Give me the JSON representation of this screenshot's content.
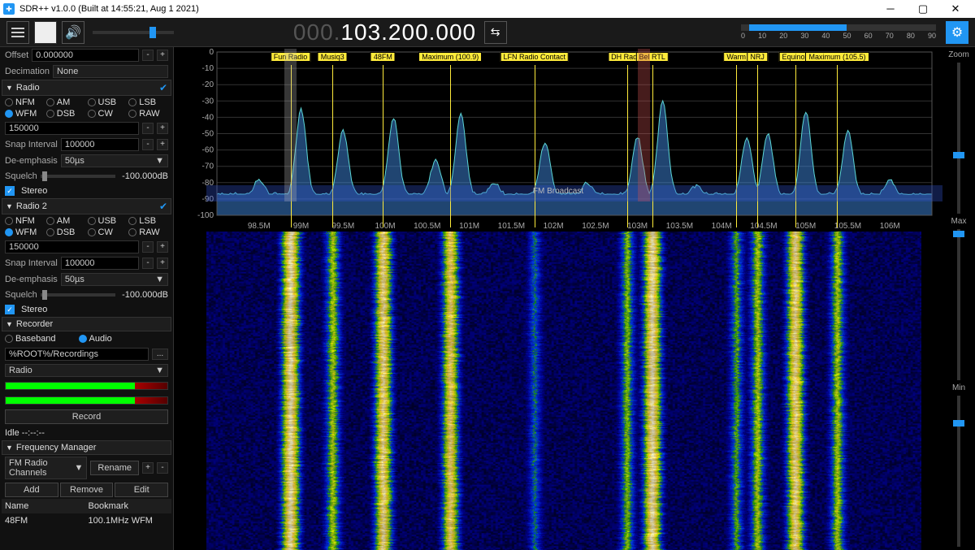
{
  "window": {
    "title": "SDR++ v1.0.0 (Built at 14:55:21, Aug  1 2021)"
  },
  "topbar": {
    "freq_dim": "000.",
    "freq_bold": "103.200.000",
    "snr_ticks": [
      "0",
      "10",
      "20",
      "30",
      "40",
      "50",
      "60",
      "70",
      "80",
      "90"
    ]
  },
  "sidebar": {
    "offset_label": "Offset",
    "offset_val": "0.000000",
    "decim_label": "Decimation",
    "decim_val": "None",
    "radio1": {
      "title": "Radio",
      "modes": [
        "NFM",
        "AM",
        "USB",
        "LSB",
        "WFM",
        "DSB",
        "CW",
        "RAW"
      ],
      "selected": "WFM",
      "bw": "150000",
      "snap_label": "Snap Interval",
      "snap": "100000",
      "deemph_label": "De-emphasis",
      "deemph": "50µs",
      "sq_label": "Squelch",
      "sq_val": "-100.000dB",
      "stereo": "Stereo"
    },
    "radio2": {
      "title": "Radio 2",
      "modes": [
        "NFM",
        "AM",
        "USB",
        "LSB",
        "WFM",
        "DSB",
        "CW",
        "RAW"
      ],
      "selected": "WFM",
      "bw": "150000",
      "snap_label": "Snap Interval",
      "snap": "100000",
      "deemph_label": "De-emphasis",
      "deemph": "50µs",
      "sq_label": "Squelch",
      "sq_val": "-100.000dB",
      "stereo": "Stereo"
    },
    "recorder": {
      "title": "Recorder",
      "baseband": "Baseband",
      "audio": "Audio",
      "path": "%ROOT%/Recordings",
      "stream": "Radio",
      "record_btn": "Record",
      "idle": "Idle --:--:--"
    },
    "freqmgr": {
      "title": "Frequency Manager",
      "list": "FM Radio Channels",
      "rename": "Rename",
      "add": "Add",
      "remove": "Remove",
      "edit": "Edit",
      "col_name": "Name",
      "col_bk": "Bookmark",
      "row_name": "48FM",
      "row_bk": "100.1MHz WFM"
    }
  },
  "right": {
    "zoom": "Zoom",
    "max": "Max",
    "min": "Min"
  },
  "spectrum": {
    "y_ticks": [
      0,
      -10,
      -20,
      -30,
      -40,
      -50,
      -60,
      -70,
      -80,
      -90,
      -100
    ],
    "x_min": 98.0,
    "x_max": 106.5,
    "x_ticks": [
      "98.5M",
      "99M",
      "99.5M",
      "100M",
      "100.5M",
      "101M",
      "101.5M",
      "102M",
      "102.5M",
      "103M",
      "103.5M",
      "104M",
      "104.5M",
      "105M",
      "105.5M",
      "106M"
    ],
    "fm_label": "FM Broadcast",
    "bookmarks": [
      {
        "freq": 99.0,
        "label": "Fun Radio"
      },
      {
        "freq": 99.5,
        "label": "Musiq3"
      },
      {
        "freq": 100.1,
        "label": "48FM"
      },
      {
        "freq": 100.9,
        "label": "Maximum (100.9)"
      },
      {
        "freq": 101.9,
        "label": "LFN Radio Contact"
      },
      {
        "freq": 103.0,
        "label": "DH Radio"
      },
      {
        "freq": 103.3,
        "label": "Bel RTL"
      },
      {
        "freq": 104.3,
        "label": "Warm"
      },
      {
        "freq": 104.55,
        "label": "NRJ"
      },
      {
        "freq": 105.0,
        "label": "Equinox"
      },
      {
        "freq": 105.5,
        "label": "Maximum (105.5)"
      }
    ],
    "vfos": [
      {
        "freq": 99.0,
        "bw": 0.15
      },
      {
        "freq": 103.2,
        "bw": 0.15
      }
    ],
    "peaks": [
      {
        "f": 98.5,
        "db": -78
      },
      {
        "f": 99.0,
        "db": -35
      },
      {
        "f": 99.5,
        "db": -48
      },
      {
        "f": 100.1,
        "db": -40
      },
      {
        "f": 100.6,
        "db": -66
      },
      {
        "f": 100.9,
        "db": -38
      },
      {
        "f": 101.3,
        "db": -80
      },
      {
        "f": 101.9,
        "db": -55
      },
      {
        "f": 102.4,
        "db": -80
      },
      {
        "f": 103.0,
        "db": -52
      },
      {
        "f": 103.3,
        "db": -30
      },
      {
        "f": 103.7,
        "db": -82
      },
      {
        "f": 104.3,
        "db": -52
      },
      {
        "f": 104.55,
        "db": -50
      },
      {
        "f": 105.0,
        "db": -36
      },
      {
        "f": 105.5,
        "db": -48
      },
      {
        "f": 106.0,
        "db": -78
      }
    ],
    "noise_floor": -88,
    "colors": {
      "trace": "#5bd6d6",
      "fill": "rgba(63,138,226,0.5)",
      "grid": "#333",
      "axis": "#888",
      "band": "rgba(60,90,200,0.45)"
    }
  },
  "waterfall": {
    "signals": [
      {
        "f": 99.0,
        "str": 1.0
      },
      {
        "f": 99.5,
        "str": 0.7
      },
      {
        "f": 100.1,
        "str": 0.95
      },
      {
        "f": 100.9,
        "str": 0.9
      },
      {
        "f": 101.9,
        "str": 0.5
      },
      {
        "f": 103.0,
        "str": 0.65
      },
      {
        "f": 103.3,
        "str": 1.0
      },
      {
        "f": 104.3,
        "str": 0.6
      },
      {
        "f": 104.55,
        "str": 0.7
      },
      {
        "f": 105.0,
        "str": 0.95
      },
      {
        "f": 105.5,
        "str": 0.7
      }
    ]
  }
}
